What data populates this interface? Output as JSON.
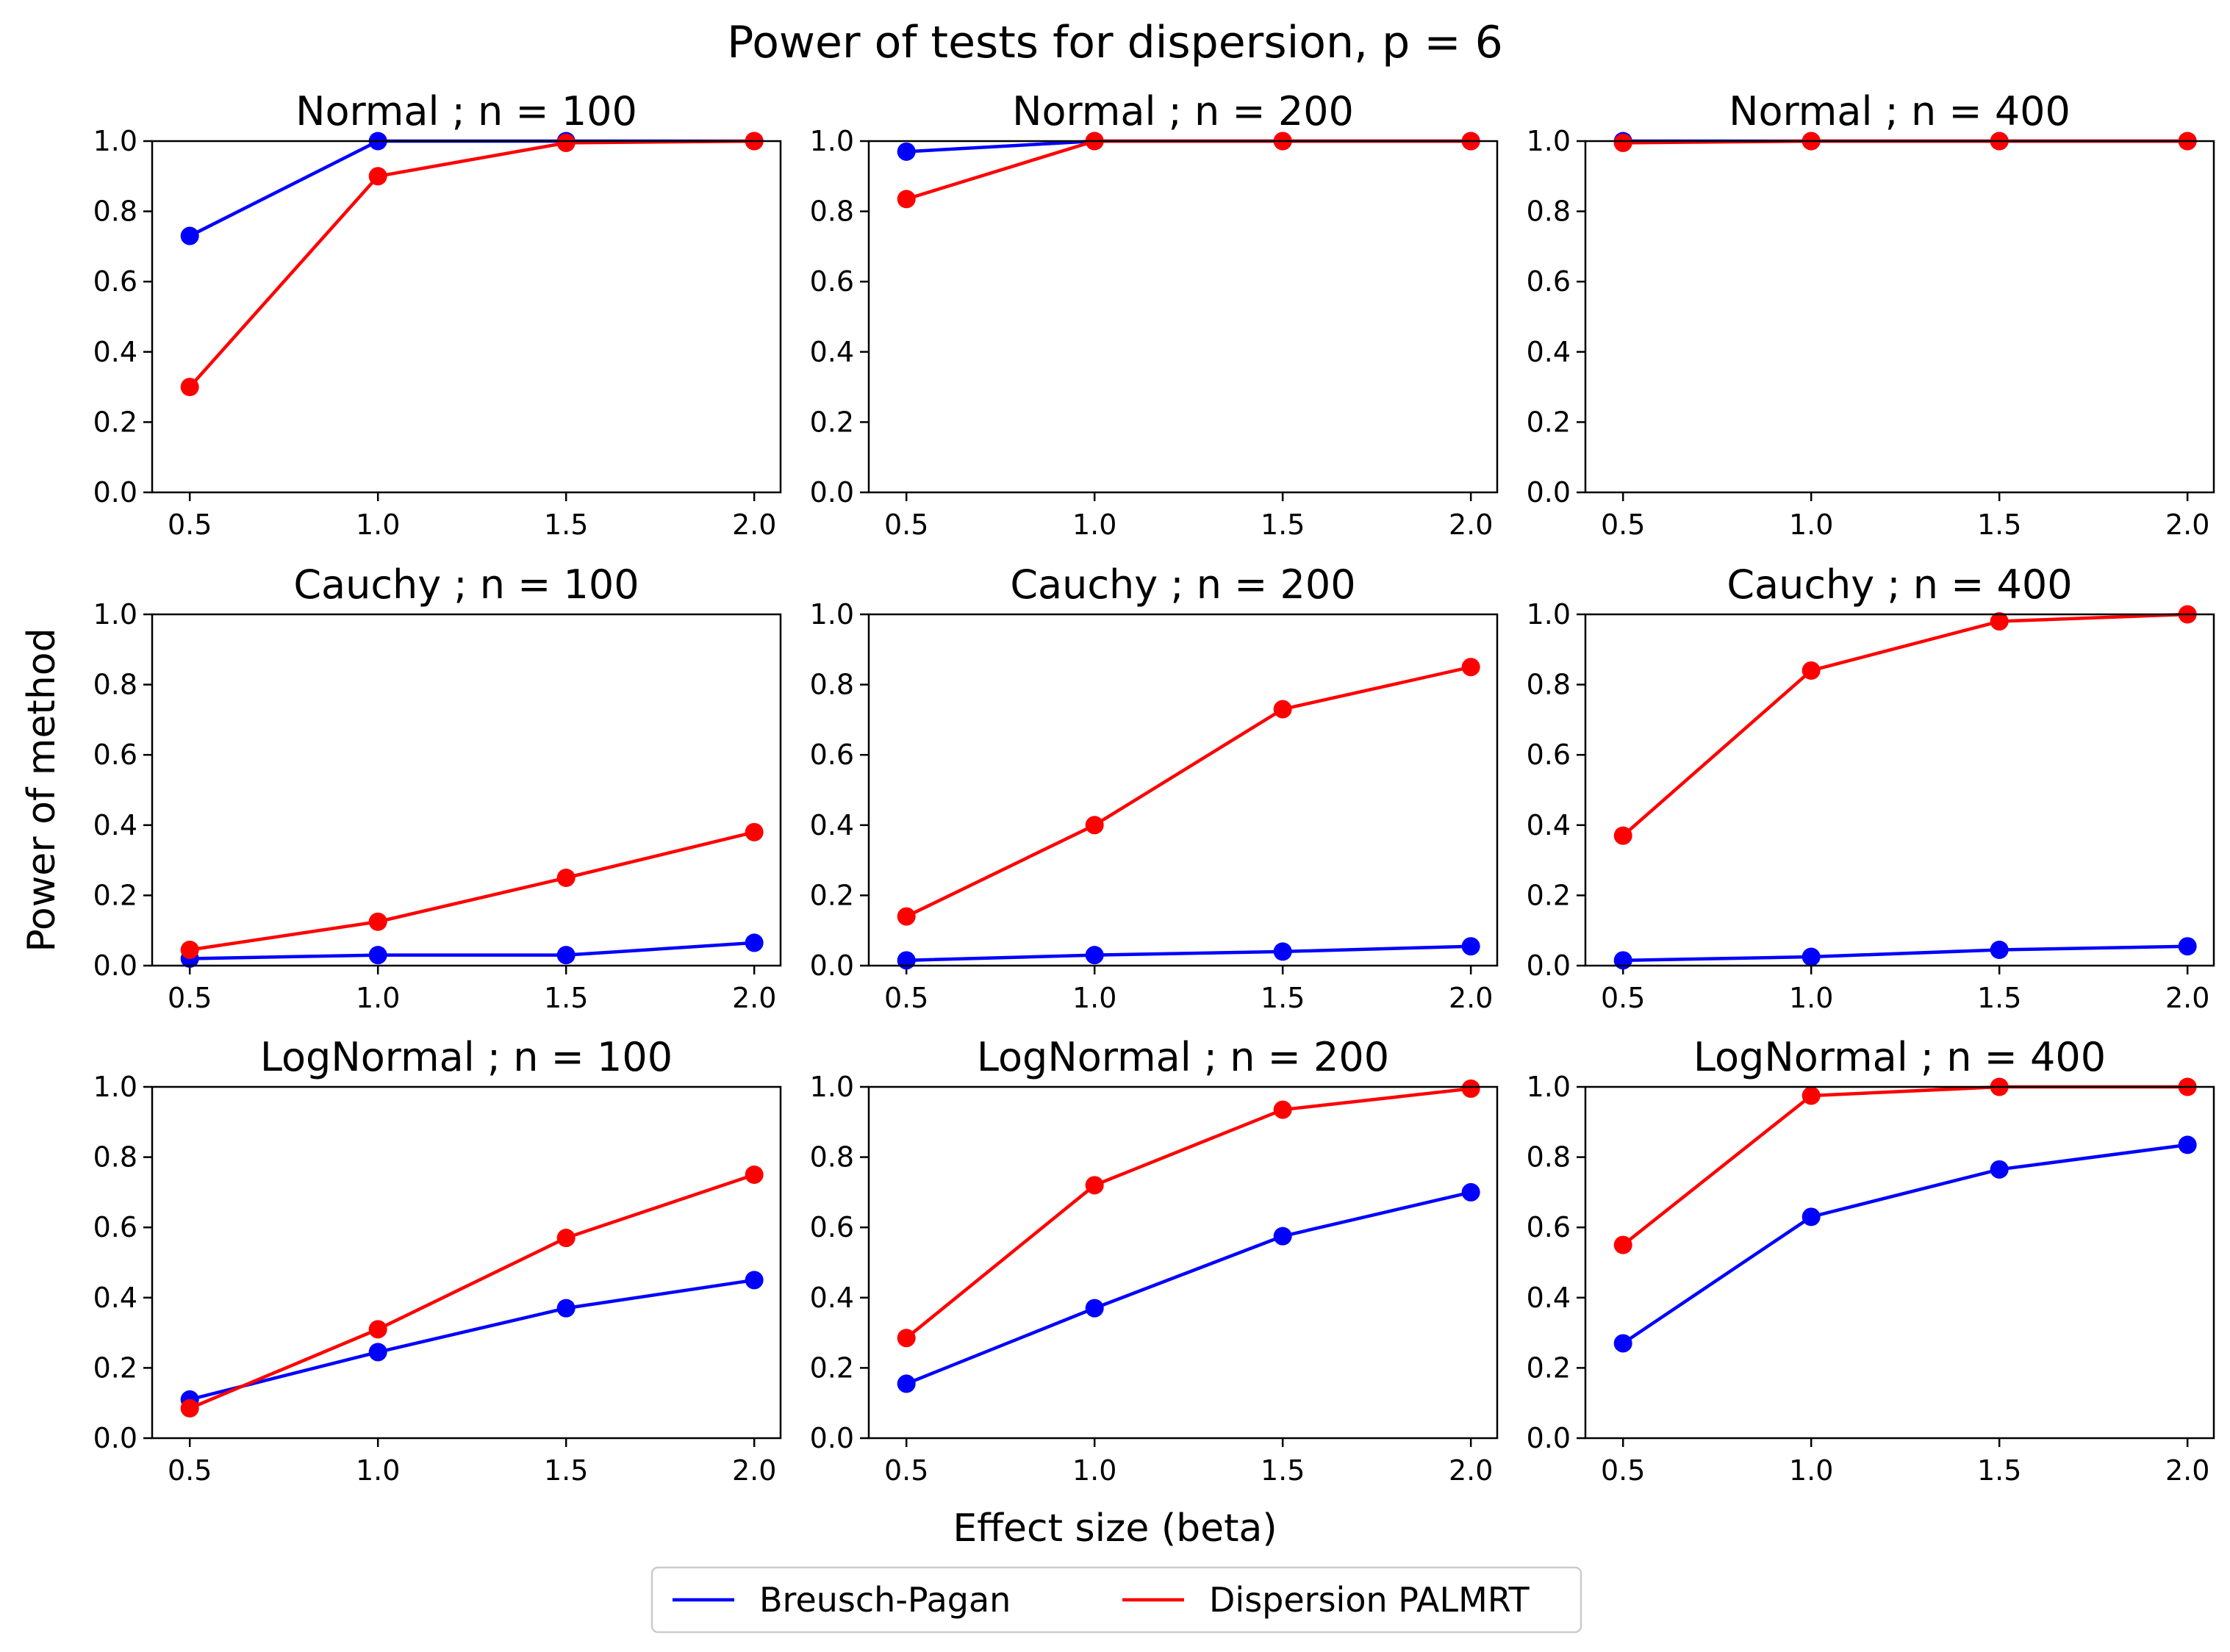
{
  "figure": {
    "title": "Power of tests for dispersion, p = 6",
    "xlabel": "Effect size (beta)",
    "ylabel": "Power of method"
  },
  "legend": {
    "placement": "bottom-center",
    "entries": [
      {
        "name": "Breusch-Pagan",
        "color": "#0000ff"
      },
      {
        "name": "Dispersion PALMRT",
        "color": "#ff0000"
      }
    ]
  },
  "colors": {
    "bp": "#0000ff",
    "palmrt": "#ff0000",
    "axes": "#000000"
  },
  "chart_data": [
    {
      "type": "line",
      "title": "Normal ; n = 100",
      "x": [
        0.5,
        1.0,
        1.5,
        2.0
      ],
      "xticks": [
        "0.5",
        "1.0",
        "1.5",
        "2.0"
      ],
      "yticks": [
        "0.0",
        "0.2",
        "0.4",
        "0.6",
        "0.8",
        "1.0"
      ],
      "xlim": [
        0.4,
        2.07
      ],
      "ylim": [
        0,
        1
      ],
      "series": [
        {
          "name": "Breusch-Pagan",
          "values": [
            0.73,
            1.0,
            1.0,
            1.0
          ]
        },
        {
          "name": "Dispersion PALMRT",
          "values": [
            0.3,
            0.9,
            0.995,
            1.0
          ]
        }
      ]
    },
    {
      "type": "line",
      "title": "Normal ; n = 200",
      "x": [
        0.5,
        1.0,
        1.5,
        2.0
      ],
      "xticks": [
        "0.5",
        "1.0",
        "1.5",
        "2.0"
      ],
      "yticks": [
        "0.0",
        "0.2",
        "0.4",
        "0.6",
        "0.8",
        "1.0"
      ],
      "xlim": [
        0.4,
        2.07
      ],
      "ylim": [
        0,
        1
      ],
      "series": [
        {
          "name": "Breusch-Pagan",
          "values": [
            0.97,
            1.0,
            1.0,
            1.0
          ]
        },
        {
          "name": "Dispersion PALMRT",
          "values": [
            0.835,
            1.0,
            1.0,
            1.0
          ]
        }
      ]
    },
    {
      "type": "line",
      "title": "Normal ; n = 400",
      "x": [
        0.5,
        1.0,
        1.5,
        2.0
      ],
      "xticks": [
        "0.5",
        "1.0",
        "1.5",
        "2.0"
      ],
      "yticks": [
        "0.0",
        "0.2",
        "0.4",
        "0.6",
        "0.8",
        "1.0"
      ],
      "xlim": [
        0.4,
        2.07
      ],
      "ylim": [
        0,
        1
      ],
      "series": [
        {
          "name": "Breusch-Pagan",
          "values": [
            1.0,
            1.0,
            1.0,
            1.0
          ]
        },
        {
          "name": "Dispersion PALMRT",
          "values": [
            0.995,
            1.0,
            1.0,
            1.0
          ]
        }
      ]
    },
    {
      "type": "line",
      "title": "Cauchy ; n = 100",
      "x": [
        0.5,
        1.0,
        1.5,
        2.0
      ],
      "xticks": [
        "0.5",
        "1.0",
        "1.5",
        "2.0"
      ],
      "yticks": [
        "0.0",
        "0.2",
        "0.4",
        "0.6",
        "0.8",
        "1.0"
      ],
      "xlim": [
        0.4,
        2.07
      ],
      "ylim": [
        0,
        1
      ],
      "series": [
        {
          "name": "Breusch-Pagan",
          "values": [
            0.02,
            0.03,
            0.03,
            0.065
          ]
        },
        {
          "name": "Dispersion PALMRT",
          "values": [
            0.045,
            0.125,
            0.25,
            0.38
          ]
        }
      ]
    },
    {
      "type": "line",
      "title": "Cauchy ; n = 200",
      "x": [
        0.5,
        1.0,
        1.5,
        2.0
      ],
      "xticks": [
        "0.5",
        "1.0",
        "1.5",
        "2.0"
      ],
      "yticks": [
        "0.0",
        "0.2",
        "0.4",
        "0.6",
        "0.8",
        "1.0"
      ],
      "xlim": [
        0.4,
        2.07
      ],
      "ylim": [
        0,
        1
      ],
      "series": [
        {
          "name": "Breusch-Pagan",
          "values": [
            0.015,
            0.03,
            0.04,
            0.055
          ]
        },
        {
          "name": "Dispersion PALMRT",
          "values": [
            0.14,
            0.4,
            0.73,
            0.85
          ]
        }
      ]
    },
    {
      "type": "line",
      "title": "Cauchy ; n = 400",
      "x": [
        0.5,
        1.0,
        1.5,
        2.0
      ],
      "xticks": [
        "0.5",
        "1.0",
        "1.5",
        "2.0"
      ],
      "yticks": [
        "0.0",
        "0.2",
        "0.4",
        "0.6",
        "0.8",
        "1.0"
      ],
      "xlim": [
        0.4,
        2.07
      ],
      "ylim": [
        0,
        1
      ],
      "series": [
        {
          "name": "Breusch-Pagan",
          "values": [
            0.015,
            0.025,
            0.045,
            0.055
          ]
        },
        {
          "name": "Dispersion PALMRT",
          "values": [
            0.37,
            0.84,
            0.98,
            1.0
          ]
        }
      ]
    },
    {
      "type": "line",
      "title": "LogNormal ; n = 100",
      "x": [
        0.5,
        1.0,
        1.5,
        2.0
      ],
      "xticks": [
        "0.5",
        "1.0",
        "1.5",
        "2.0"
      ],
      "yticks": [
        "0.0",
        "0.2",
        "0.4",
        "0.6",
        "0.8",
        "1.0"
      ],
      "xlim": [
        0.4,
        2.07
      ],
      "ylim": [
        0,
        1
      ],
      "series": [
        {
          "name": "Breusch-Pagan",
          "values": [
            0.11,
            0.245,
            0.37,
            0.45
          ]
        },
        {
          "name": "Dispersion PALMRT",
          "values": [
            0.085,
            0.31,
            0.57,
            0.75
          ]
        }
      ]
    },
    {
      "type": "line",
      "title": "LogNormal ; n = 200",
      "x": [
        0.5,
        1.0,
        1.5,
        2.0
      ],
      "xticks": [
        "0.5",
        "1.0",
        "1.5",
        "2.0"
      ],
      "yticks": [
        "0.0",
        "0.2",
        "0.4",
        "0.6",
        "0.8",
        "1.0"
      ],
      "xlim": [
        0.4,
        2.07
      ],
      "ylim": [
        0,
        1
      ],
      "series": [
        {
          "name": "Breusch-Pagan",
          "values": [
            0.155,
            0.37,
            0.575,
            0.7
          ]
        },
        {
          "name": "Dispersion PALMRT",
          "values": [
            0.285,
            0.72,
            0.935,
            0.995
          ]
        }
      ]
    },
    {
      "type": "line",
      "title": "LogNormal ; n = 400",
      "x": [
        0.5,
        1.0,
        1.5,
        2.0
      ],
      "xticks": [
        "0.5",
        "1.0",
        "1.5",
        "2.0"
      ],
      "yticks": [
        "0.0",
        "0.2",
        "0.4",
        "0.6",
        "0.8",
        "1.0"
      ],
      "xlim": [
        0.4,
        2.07
      ],
      "ylim": [
        0,
        1
      ],
      "series": [
        {
          "name": "Breusch-Pagan",
          "values": [
            0.27,
            0.63,
            0.765,
            0.835
          ]
        },
        {
          "name": "Dispersion PALMRT",
          "values": [
            0.55,
            0.975,
            1.0,
            1.0
          ]
        }
      ]
    }
  ]
}
